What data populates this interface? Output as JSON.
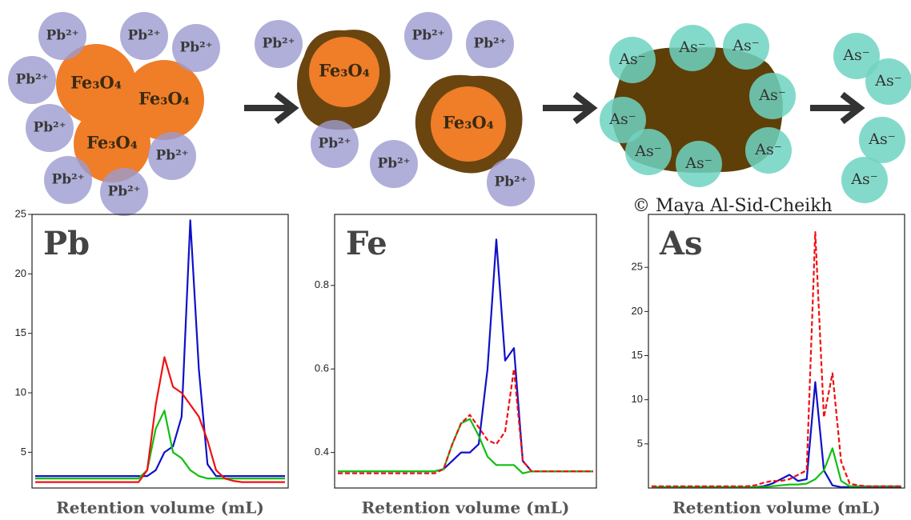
{
  "diagram": {
    "labels": [
      "Pb²⁺",
      "Pb²⁺",
      "Pb²⁺",
      "Pb²⁺",
      "Pb²⁺",
      "Pb²⁺",
      "Pb²⁺",
      "Pb²⁺",
      "Fe₃O₄",
      "Fe₃O₄",
      "Fe₃O₄",
      "Pb²⁺",
      "Pb²⁺",
      "Pb²⁺",
      "Pb²⁺",
      "Pb²⁺",
      "Pb²⁺",
      "Fe₃O₄",
      "Fe₃O₄",
      "As⁻",
      "As⁻",
      "As⁻",
      "As⁻",
      "As⁻",
      "As⁻",
      "As⁻",
      "As⁻",
      "As⁻",
      "As⁻",
      "As⁻",
      "As⁻"
    ],
    "credit": "© Maya Al-Sid-Cheikh"
  },
  "chart_data": [
    {
      "type": "line",
      "title": "Pb",
      "x_label": "Retention volume (mL)",
      "categories": [
        null,
        null,
        null,
        null,
        null,
        null,
        null,
        null,
        null,
        null,
        null,
        null,
        null,
        null,
        null,
        null,
        null,
        null,
        null,
        null,
        null,
        null,
        null,
        null,
        null,
        null,
        null,
        null,
        null,
        null
      ],
      "ylim": [
        2,
        25
      ],
      "yticks": [
        5,
        10,
        15,
        20,
        25
      ],
      "series": [
        {
          "color": "#1010c8",
          "values": [
            3,
            3,
            3,
            3,
            3,
            3,
            3,
            3,
            3,
            3,
            3,
            3,
            3,
            3,
            3.5,
            5,
            5.5,
            8,
            24.5,
            12,
            4,
            3,
            3,
            3,
            3,
            3,
            3,
            3,
            3,
            3
          ]
        },
        {
          "color": "#10c010",
          "values": [
            2.8,
            2.8,
            2.8,
            2.8,
            2.8,
            2.8,
            2.8,
            2.8,
            2.8,
            2.8,
            2.8,
            2.8,
            2.8,
            3.5,
            7,
            8.5,
            5,
            4.5,
            3.5,
            3,
            2.8,
            2.8,
            2.8,
            2.8,
            2.8,
            2.8,
            2.8,
            2.8,
            2.8,
            2.8
          ]
        },
        {
          "color": "#f01010",
          "values": [
            2.5,
            2.5,
            2.5,
            2.5,
            2.5,
            2.5,
            2.5,
            2.5,
            2.5,
            2.5,
            2.5,
            2.5,
            2.5,
            3.5,
            9,
            13,
            10.5,
            10,
            9,
            8,
            6,
            3.5,
            2.8,
            2.6,
            2.5,
            2.5,
            2.5,
            2.5,
            2.5,
            2.5
          ]
        }
      ]
    },
    {
      "type": "line",
      "title": "Fe",
      "x_label": "Retention volume (mL)",
      "categories": [
        null,
        null,
        null,
        null,
        null,
        null,
        null,
        null,
        null,
        null,
        null,
        null,
        null,
        null,
        null,
        null,
        null,
        null,
        null,
        null,
        null,
        null,
        null,
        null,
        null,
        null,
        null,
        null,
        null,
        null
      ],
      "ylim": [
        0.315,
        0.97
      ],
      "yticks": [
        0.4,
        0.6,
        0.8
      ],
      "series": [
        {
          "color": "#1010c8",
          "values": [
            0.355,
            0.355,
            0.355,
            0.355,
            0.355,
            0.355,
            0.355,
            0.355,
            0.355,
            0.355,
            0.355,
            0.355,
            0.36,
            0.38,
            0.4,
            0.4,
            0.42,
            0.6,
            0.91,
            0.62,
            0.65,
            0.38,
            0.355,
            0.355,
            0.355,
            0.355,
            0.355,
            0.355,
            0.355,
            0.355
          ]
        },
        {
          "color": "#10c010",
          "values": [
            0.355,
            0.355,
            0.355,
            0.355,
            0.355,
            0.355,
            0.355,
            0.355,
            0.355,
            0.355,
            0.355,
            0.355,
            0.36,
            0.42,
            0.47,
            0.48,
            0.44,
            0.39,
            0.37,
            0.37,
            0.37,
            0.35,
            0.355,
            0.355,
            0.355,
            0.355,
            0.355,
            0.355,
            0.355,
            0.355
          ]
        },
        {
          "color": "#f01010",
          "dashed": true,
          "values": [
            0.35,
            0.35,
            0.35,
            0.35,
            0.35,
            0.35,
            0.35,
            0.35,
            0.35,
            0.35,
            0.35,
            0.35,
            0.36,
            0.42,
            0.47,
            0.49,
            0.46,
            0.43,
            0.42,
            0.45,
            0.6,
            0.38,
            0.355,
            0.355,
            0.355,
            0.355,
            0.355,
            0.355,
            0.355,
            0.355
          ]
        }
      ]
    },
    {
      "type": "line",
      "title": "As",
      "x_label": "Retention volume (mL)",
      "categories": [
        null,
        null,
        null,
        null,
        null,
        null,
        null,
        null,
        null,
        null,
        null,
        null,
        null,
        null,
        null,
        null,
        null,
        null,
        null,
        null,
        null,
        null,
        null,
        null,
        null,
        null,
        null,
        null,
        null,
        null
      ],
      "ylim": [
        0,
        31
      ],
      "yticks": [
        5,
        10,
        15,
        20,
        25
      ],
      "series": [
        {
          "color": "#1010c8",
          "values": [
            0.1,
            0.1,
            0.1,
            0.1,
            0.1,
            0.1,
            0.1,
            0.1,
            0.1,
            0.1,
            0.1,
            0.1,
            0.1,
            0.2,
            0.5,
            1,
            1.5,
            0.8,
            1,
            12,
            2,
            0.3,
            0.1,
            0.1,
            0.1,
            0.1,
            0.1,
            0.1,
            0.1,
            0.1
          ]
        },
        {
          "color": "#10c010",
          "values": [
            0.1,
            0.1,
            0.1,
            0.1,
            0.1,
            0.1,
            0.1,
            0.1,
            0.1,
            0.1,
            0.1,
            0.1,
            0.1,
            0.1,
            0.2,
            0.3,
            0.4,
            0.4,
            0.5,
            1,
            2,
            4.5,
            0.8,
            0.2,
            0.2,
            0.2,
            0.2,
            0.2,
            0.2,
            0.2
          ]
        },
        {
          "color": "#f01010",
          "dashed": true,
          "values": [
            0.2,
            0.2,
            0.2,
            0.2,
            0.2,
            0.2,
            0.2,
            0.2,
            0.2,
            0.2,
            0.2,
            0.2,
            0.3,
            0.6,
            0.8,
            0.8,
            1,
            1.5,
            2,
            29,
            8,
            13,
            3,
            0.5,
            0.3,
            0.2,
            0.2,
            0.2,
            0.2,
            0.2
          ]
        }
      ]
    }
  ]
}
